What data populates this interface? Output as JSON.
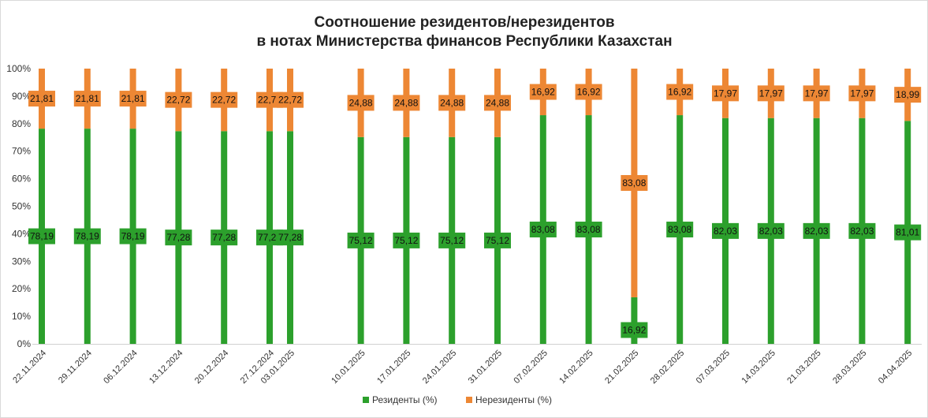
{
  "chart_data": {
    "type": "bar",
    "stacked": true,
    "title": "Соотношение резидентов/нерезидентов в нотах Министерства финансов Республики Казахстан",
    "title_lines": [
      "Соотношение резидентов/нерезидентов",
      "в нотах Министерства финансов Республики Казахстан"
    ],
    "categories": [
      "22.11.2024",
      "29.11.2024",
      "06.12.2024",
      "13.12.2024",
      "20.12.2024",
      "27.12.2024",
      "03.01.2025",
      "10.01.2025",
      "17.01.2025",
      "24.01.2025",
      "31.01.2025",
      "07.02.2025",
      "14.02.2025",
      "21.02.2025",
      "28.02.2025",
      "07.03.2025",
      "14.03.2025",
      "21.03.2025",
      "28.03.2025",
      "04.04.2025"
    ],
    "bar_positions": [
      0,
      1,
      2,
      3,
      4,
      5,
      5.45,
      7,
      8,
      9,
      10,
      11,
      12,
      13,
      14,
      15,
      16,
      17,
      18,
      19
    ],
    "series": [
      {
        "name": "Резиденты (%)",
        "color": "#2ca02c",
        "values": [
          78.19,
          78.19,
          78.19,
          77.28,
          77.28,
          77.28,
          77.28,
          75.12,
          75.12,
          75.12,
          75.12,
          83.08,
          83.08,
          16.92,
          83.08,
          82.03,
          82.03,
          82.03,
          82.03,
          81.01
        ],
        "labels": [
          "78,19",
          "78,19",
          "78,19",
          "77,28",
          "77,28",
          "77,28",
          "77,28",
          "75,12",
          "75,12",
          "75,12",
          "75,12",
          "83,08",
          "83,08",
          "16,92",
          "83,08",
          "82,03",
          "82,03",
          "82,03",
          "82,03",
          "81,01"
        ]
      },
      {
        "name": "Нерезиденты (%)",
        "color": "#ed8734",
        "values": [
          21.81,
          21.81,
          21.81,
          22.72,
          22.72,
          22.72,
          22.72,
          24.88,
          24.88,
          24.88,
          24.88,
          16.92,
          16.92,
          83.08,
          16.92,
          17.97,
          17.97,
          17.97,
          17.97,
          18.99
        ],
        "labels": [
          "21,81",
          "21,81",
          "21,81",
          "22,72",
          "22,72",
          "22,72",
          "22,72",
          "24,88",
          "24,88",
          "24,88",
          "24,88",
          "16,92",
          "16,92",
          "83,08",
          "16,92",
          "17,97",
          "17,97",
          "17,97",
          "17,97",
          "18,99"
        ]
      }
    ],
    "ylim": [
      0,
      100
    ],
    "yticks": [
      "0%",
      "10%",
      "20%",
      "30%",
      "40%",
      "50%",
      "60%",
      "70%",
      "80%",
      "90%",
      "100%"
    ],
    "xlabel": "",
    "ylabel": "",
    "grid": false,
    "legend_position": "bottom"
  }
}
